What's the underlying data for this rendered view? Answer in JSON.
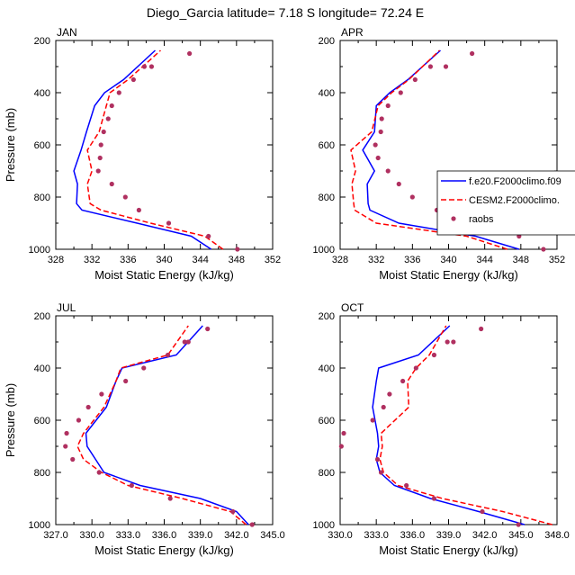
{
  "figure": {
    "title": "Diego_Garcia  latitude= 7.18 S longitude= 72.24 E"
  },
  "legend": {
    "panel": "APR",
    "entries": [
      {
        "label": "f.e20.F2000climo.f09",
        "style": "solid",
        "color": "#0000ff"
      },
      {
        "label": "CESM2.F2000climo.",
        "style": "dashed",
        "color": "#ff0000"
      },
      {
        "label": "raobs",
        "style": "dot",
        "color": "#b03060"
      }
    ]
  },
  "chart_data": [
    {
      "type": "line",
      "panel_label": "JAN",
      "xlabel": "Moist Static Energy (kJ/kg)",
      "ylabel": "Pressure (mb)",
      "xlim": [
        328,
        352
      ],
      "ylim": [
        1000,
        200
      ],
      "xticks": [
        "328",
        "332",
        "336",
        "340",
        "344",
        "348",
        "352"
      ],
      "yticks": [
        "200",
        "400",
        "600",
        "800",
        "1000"
      ],
      "series": [
        {
          "name": "f.e20.F2000climo.f09",
          "style": "solid",
          "color": "#0000ff",
          "x": [
            345.2,
            343.0,
            337.0,
            330.9,
            330.3,
            330.4,
            330.0,
            330.8,
            331.4,
            332.3,
            333.4,
            335.5,
            339.0
          ],
          "y": [
            1000,
            950,
            900,
            850,
            825,
            750,
            700,
            620,
            550,
            450,
            400,
            350,
            238
          ]
        },
        {
          "name": "CESM2.F2000climo.",
          "style": "dashed",
          "color": "#ff0000",
          "x": [
            346.5,
            344.5,
            338.5,
            333.0,
            331.8,
            331.5,
            332.0,
            331.5,
            332.8,
            333.6,
            334.0,
            336.0,
            339.6
          ],
          "y": [
            1000,
            950,
            900,
            850,
            825,
            750,
            700,
            620,
            550,
            450,
            400,
            350,
            238
          ]
        },
        {
          "name": "raobs",
          "style": "dot",
          "color": "#b03060",
          "x": [
            348.1,
            344.9,
            340.5,
            337.2,
            335.7,
            334.2,
            332.7,
            332.9,
            333.0,
            333.3,
            333.8,
            334.2,
            335.0,
            336.6,
            337.8,
            338.6,
            342.8
          ],
          "y": [
            1000,
            950,
            900,
            850,
            800,
            750,
            700,
            650,
            600,
            550,
            500,
            450,
            400,
            350,
            300,
            300,
            250
          ]
        }
      ]
    },
    {
      "type": "line",
      "panel_label": "APR",
      "xlabel": "Moist Static Energy (kJ/kg)",
      "ylabel": "",
      "xlim": [
        328,
        352
      ],
      "ylim": [
        1000,
        200
      ],
      "xticks": [
        "328",
        "332",
        "336",
        "340",
        "344",
        "348",
        "352"
      ],
      "yticks": [
        "200",
        "400",
        "600",
        "800",
        "1000"
      ],
      "series": [
        {
          "name": "f.e20.F2000climo.f09",
          "style": "solid",
          "color": "#0000ff",
          "x": [
            347.8,
            343.0,
            334.5,
            331.3,
            331.1,
            331.0,
            331.8,
            330.5,
            331.8,
            332.0,
            333.5,
            335.5,
            339.1
          ],
          "y": [
            1000,
            950,
            900,
            850,
            825,
            750,
            700,
            620,
            550,
            450,
            400,
            350,
            238
          ]
        },
        {
          "name": "CESM2.F2000climo.",
          "style": "dashed",
          "color": "#ff0000",
          "x": [
            346.5,
            342.0,
            332.0,
            329.6,
            329.5,
            329.3,
            329.7,
            329.2,
            331.5,
            332.2,
            333.7,
            335.6,
            339.0
          ],
          "y": [
            1000,
            950,
            900,
            850,
            825,
            750,
            700,
            620,
            550,
            450,
            400,
            350,
            238
          ]
        },
        {
          "name": "raobs",
          "style": "dot",
          "color": "#b03060",
          "x": [
            350.5,
            347.8,
            342.7,
            338.7,
            336.0,
            334.5,
            333.3,
            332.2,
            331.9,
            332.5,
            332.6,
            333.3,
            334.7,
            336.3,
            338.0,
            339.7,
            342.6
          ],
          "y": [
            1000,
            950,
            900,
            850,
            800,
            750,
            700,
            650,
            600,
            550,
            500,
            450,
            400,
            350,
            300,
            300,
            250
          ]
        }
      ]
    },
    {
      "type": "line",
      "panel_label": "JUL",
      "xlabel": "Moist Static Energy (kJ/kg)",
      "ylabel": "Pressure (mb)",
      "xlim": [
        327,
        345
      ],
      "ylim": [
        1000,
        200
      ],
      "xticks": [
        "327.0",
        "330.0",
        "333.0",
        "336.0",
        "339.0",
        "342.0",
        "345.0"
      ],
      "yticks": [
        "200",
        "400",
        "600",
        "800",
        "1000"
      ],
      "series": [
        {
          "name": "f.e20.F2000climo.f09",
          "style": "solid",
          "color": "#0000ff",
          "x": [
            343.0,
            342.0,
            339.0,
            334.0,
            331.0,
            330.3,
            329.6,
            329.5,
            331.2,
            332.0,
            332.5,
            337.0,
            339.2
          ],
          "y": [
            1000,
            950,
            900,
            850,
            800,
            750,
            700,
            650,
            550,
            450,
            400,
            350,
            238
          ]
        },
        {
          "name": "CESM2.F2000climo.",
          "style": "dashed",
          "color": "#ff0000",
          "x": [
            342.8,
            341.5,
            337.5,
            333.0,
            330.8,
            329.3,
            328.8,
            329.3,
            331.0,
            332.0,
            332.4,
            336.3,
            338.0
          ],
          "y": [
            1000,
            950,
            900,
            850,
            800,
            750,
            700,
            650,
            550,
            450,
            400,
            350,
            238
          ]
        },
        {
          "name": "raobs",
          "style": "dot",
          "color": "#b03060",
          "x": [
            343.3,
            341.7,
            336.5,
            333.3,
            330.6,
            328.4,
            327.8,
            327.9,
            328.9,
            329.7,
            330.8,
            332.8,
            334.3,
            336.3,
            337.7,
            338.0,
            339.6
          ],
          "y": [
            1000,
            950,
            900,
            850,
            800,
            750,
            700,
            650,
            600,
            550,
            500,
            450,
            400,
            350,
            300,
            300,
            250
          ]
        }
      ]
    },
    {
      "type": "line",
      "panel_label": "OCT",
      "xlabel": "Moist Static Energy (kJ/kg)",
      "ylabel": "",
      "xlim": [
        330,
        348
      ],
      "ylim": [
        1000,
        200
      ],
      "xticks": [
        "330.0",
        "333.0",
        "336.0",
        "339.0",
        "342.0",
        "345.0",
        "348.0"
      ],
      "yticks": [
        "200",
        "400",
        "600",
        "800",
        "1000"
      ],
      "series": [
        {
          "name": "f.e20.F2000climo.f09",
          "style": "solid",
          "color": "#0000ff",
          "x": [
            345.3,
            341.5,
            337.5,
            334.5,
            333.3,
            333.0,
            333.2,
            333.1,
            332.7,
            333.0,
            333.2,
            336.5,
            339.1
          ],
          "y": [
            1000,
            950,
            900,
            850,
            800,
            750,
            700,
            650,
            550,
            450,
            400,
            350,
            238
          ]
        },
        {
          "name": "CESM2.F2000climo.",
          "style": "dashed",
          "color": "#ff0000",
          "x": [
            347.6,
            343.5,
            338.5,
            334.8,
            333.6,
            333.3,
            333.5,
            333.4,
            335.7,
            335.6,
            336.3,
            337.4,
            338.8
          ],
          "y": [
            1000,
            950,
            900,
            850,
            800,
            750,
            700,
            650,
            550,
            450,
            400,
            350,
            238
          ]
        },
        {
          "name": "raobs",
          "style": "dot",
          "color": "#b03060",
          "x": [
            344.8,
            341.8,
            337.8,
            335.5,
            333.4,
            333.1,
            330.1,
            330.3,
            332.7,
            333.6,
            334.1,
            335.2,
            336.3,
            337.8,
            338.9,
            339.4,
            341.7
          ],
          "y": [
            1000,
            950,
            900,
            850,
            800,
            750,
            700,
            650,
            600,
            550,
            500,
            450,
            400,
            350,
            300,
            300,
            250
          ]
        }
      ]
    }
  ]
}
